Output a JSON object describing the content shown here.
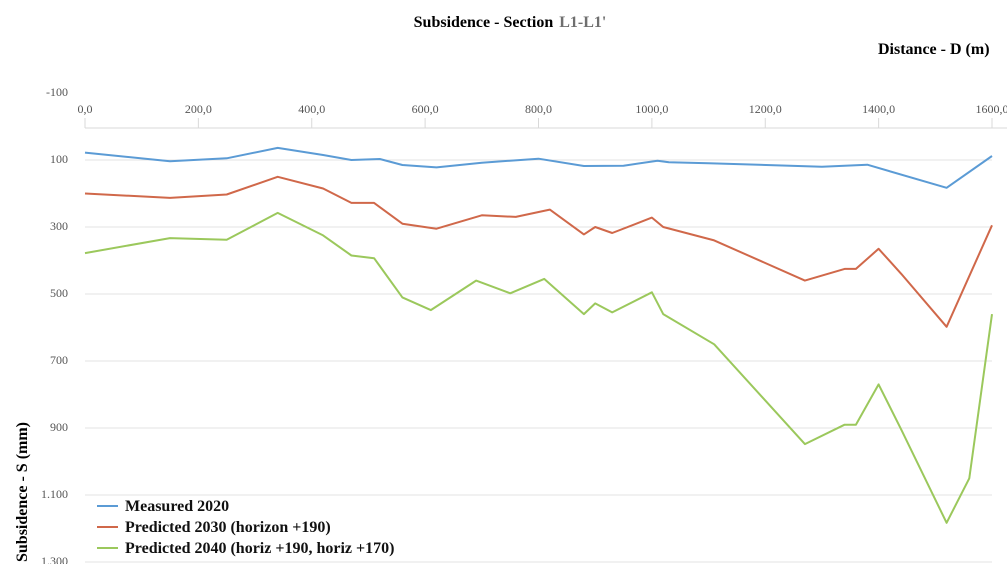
{
  "chart_data": {
    "type": "line",
    "title": "Subsidence - Section",
    "section_name": "L1-L1'",
    "x_label": "Distance - D (m)",
    "y_label": "Subsidence - S (mm)",
    "y_inverted": true,
    "grid": true,
    "legend": "bottom-left",
    "xlim": [
      0,
      1600
    ],
    "xticks": [
      {
        "value": 0,
        "label": "0,0"
      },
      {
        "value": 200,
        "label": "200,0"
      },
      {
        "value": 400,
        "label": "400,0"
      },
      {
        "value": 600,
        "label": "600,0"
      },
      {
        "value": 800,
        "label": "800,0"
      },
      {
        "value": 1000,
        "label": "1000,0"
      },
      {
        "value": 1200,
        "label": "1200,0"
      },
      {
        "value": 1400,
        "label": "1400,0"
      },
      {
        "value": 1600,
        "label": "1600,0"
      }
    ],
    "ylim": [
      -100,
      1300
    ],
    "yticks": [
      -100,
      100,
      300,
      500,
      700,
      900,
      {
        "value": 1100,
        "label": "1.100"
      },
      {
        "value": 1300,
        "label": "1.300"
      }
    ],
    "series": [
      {
        "name": "Measured 2020",
        "color": "#5b9bd5",
        "x": [
          0,
          150,
          250,
          340,
          420,
          470,
          520,
          560,
          620,
          700,
          800,
          880,
          950,
          1010,
          1030,
          1100,
          1300,
          1380,
          1520,
          1600
        ],
        "values": [
          78,
          104,
          95,
          64,
          85,
          100,
          97,
          115,
          122,
          108,
          96,
          118,
          117,
          102,
          107,
          110,
          120,
          114,
          183,
          88
        ]
      },
      {
        "name": "Predicted 2030 (horizon +190)",
        "color": "#d0684a",
        "x": [
          0,
          150,
          250,
          340,
          420,
          470,
          510,
          560,
          620,
          700,
          760,
          820,
          880,
          900,
          930,
          1000,
          1020,
          1110,
          1270,
          1340,
          1360,
          1400,
          1440,
          1520,
          1600
        ],
        "values": [
          200,
          213,
          203,
          150,
          185,
          228,
          228,
          290,
          305,
          265,
          270,
          248,
          322,
          300,
          318,
          272,
          300,
          340,
          460,
          425,
          425,
          365,
          440,
          598,
          295
        ]
      },
      {
        "name": "Predicted 2040 (horiz +190, horiz +170)",
        "color": "#9bc85c",
        "x": [
          0,
          150,
          250,
          340,
          420,
          470,
          510,
          560,
          610,
          690,
          750,
          810,
          880,
          900,
          930,
          1000,
          1020,
          1110,
          1270,
          1340,
          1360,
          1400,
          1440,
          1520,
          1560,
          1600
        ],
        "values": [
          378,
          333,
          338,
          258,
          325,
          385,
          393,
          510,
          548,
          460,
          498,
          455,
          560,
          528,
          555,
          495,
          560,
          650,
          948,
          890,
          890,
          770,
          905,
          1183,
          1050,
          560
        ]
      }
    ]
  }
}
